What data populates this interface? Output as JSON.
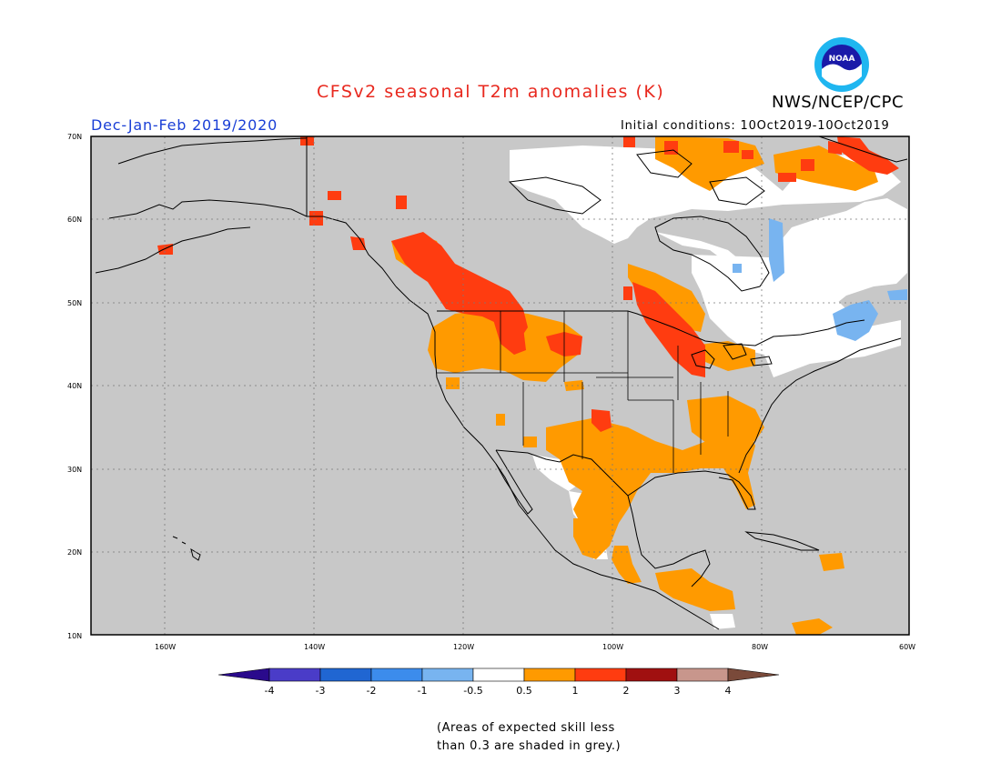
{
  "header": {
    "title": "CFSv2 seasonal T2m anomalies (K)",
    "agency": "NWS/NCEP/CPC",
    "logo_text": "NOAA",
    "season": "Dec-Jan-Feb 2019/2020",
    "initial_conditions": "Initial conditions: 10Oct2019-10Oct2019"
  },
  "map": {
    "lat_labels": [
      "70N",
      "60N",
      "50N",
      "40N",
      "30N",
      "20N",
      "10N"
    ],
    "lon_labels": [
      "160W",
      "140W",
      "120W",
      "100W",
      "80W",
      "60W"
    ],
    "colors": {
      "background": "#c8c8c8",
      "near_normal": "#ffffff",
      "warm_0_5_to_1": "#ff9a00",
      "warm_1_to_2": "#ff3c10",
      "cold_m1_to_m0_5": "#78b4f0"
    }
  },
  "colorbar": {
    "ticks": [
      "-4",
      "-3",
      "-2",
      "-1",
      "-0.5",
      "0.5",
      "1",
      "2",
      "3",
      "4"
    ],
    "colors": [
      "#2a0a8c",
      "#4a3cc8",
      "#2066d2",
      "#3c8cec",
      "#78b4f0",
      "#ffffff",
      "#ff9a00",
      "#ff3c10",
      "#a01010",
      "#c8968c",
      "#7a4a3a"
    ]
  },
  "note": {
    "line1": "(Areas of expected skill less",
    "line2": "than 0.3 are shaded in grey.)"
  }
}
